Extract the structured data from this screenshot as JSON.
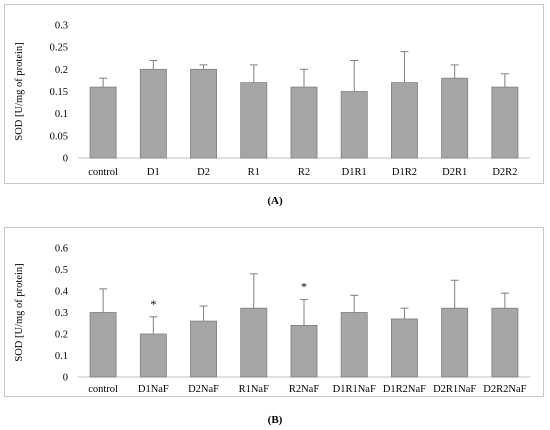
{
  "chart_data": [
    {
      "id": "A",
      "panel_label": "(A)",
      "type": "bar",
      "ylabel": "SOD [U/mg of protein]",
      "ylim": [
        0,
        0.3
      ],
      "yticks": [
        "0",
        "0.05",
        "0.1",
        "0.15",
        "0.2",
        "0.25",
        "0.3"
      ],
      "ytick_values": [
        0,
        0.05,
        0.1,
        0.15,
        0.2,
        0.25,
        0.3
      ],
      "categories": [
        "control",
        "D1",
        "D2",
        "R1",
        "R2",
        "D1R1",
        "D1R2",
        "D2R1",
        "D2R2"
      ],
      "values": [
        0.16,
        0.2,
        0.2,
        0.17,
        0.16,
        0.15,
        0.17,
        0.18,
        0.16
      ],
      "error_upper": [
        0.02,
        0.02,
        0.01,
        0.04,
        0.04,
        0.07,
        0.07,
        0.03,
        0.03
      ],
      "significance": [
        "",
        "",
        "",
        "",
        "",
        "",
        "",
        "",
        ""
      ],
      "bar_color": "#a6a6a6",
      "grid": false
    },
    {
      "id": "B",
      "panel_label": "(B)",
      "type": "bar",
      "ylabel": "SOD [U/mg of protein]",
      "ylim": [
        0,
        0.6
      ],
      "yticks": [
        "0",
        "0.1",
        "0.2",
        "0.3",
        "0.4",
        "0.5",
        "0.6"
      ],
      "ytick_values": [
        0,
        0.1,
        0.2,
        0.3,
        0.4,
        0.5,
        0.6
      ],
      "categories": [
        "control",
        "D1NaF",
        "D2NaF",
        "R1NaF",
        "R2NaF",
        "D1R1NaF",
        "D1R2NaF",
        "D2R1NaF",
        "D2R2NaF"
      ],
      "values": [
        0.3,
        0.2,
        0.26,
        0.32,
        0.24,
        0.3,
        0.27,
        0.32,
        0.32
      ],
      "error_upper": [
        0.11,
        0.08,
        0.07,
        0.16,
        0.12,
        0.08,
        0.05,
        0.13,
        0.07
      ],
      "significance": [
        "",
        "*",
        "",
        "",
        "*",
        "",
        "",
        "",
        ""
      ],
      "bar_color": "#a6a6a6",
      "grid": false
    }
  ]
}
